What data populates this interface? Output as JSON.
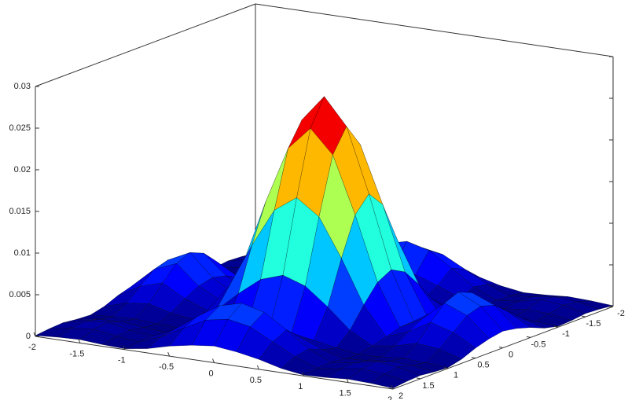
{
  "chart_data": {
    "type": "surface",
    "colormap": "jet",
    "x": [
      -2,
      -1.75,
      -1.5,
      -1.25,
      -1,
      -0.75,
      -0.5,
      -0.25,
      0,
      0.25,
      0.5,
      0.75,
      1,
      1.25,
      1.5,
      1.75,
      2
    ],
    "y": [
      -2,
      -1.75,
      -1.5,
      -1.25,
      -1,
      -0.75,
      -0.5,
      -0.25,
      0,
      0.25,
      0.5,
      0.75,
      1,
      1.25,
      1.5,
      1.75,
      2
    ],
    "z": [
      [
        0.0001,
        0.0003,
        0.0004,
        0.0002,
        0.0001,
        0.0005,
        0.0012,
        0.0017,
        0.002,
        0.0017,
        0.0012,
        0.0005,
        0.0001,
        0.0002,
        0.0004,
        0.0003,
        0.0001
      ],
      [
        0.0003,
        0.0008,
        0.001,
        0.0006,
        0.0003,
        0.0013,
        0.0027,
        0.0041,
        0.0046,
        0.0041,
        0.0027,
        0.0013,
        0.0003,
        0.0006,
        0.001,
        0.0008,
        0.0003
      ],
      [
        0.0004,
        0.001,
        0.0013,
        0.0007,
        0.0004,
        0.0016,
        0.0035,
        0.0052,
        0.0059,
        0.0052,
        0.0035,
        0.0016,
        0.0004,
        0.0007,
        0.0013,
        0.001,
        0.0004
      ],
      [
        0.0002,
        0.0006,
        0.0007,
        0.0004,
        0.0002,
        0.0009,
        0.002,
        0.0029,
        0.0033,
        0.0029,
        0.002,
        0.0009,
        0.0002,
        0.0004,
        0.0007,
        0.0006,
        0.0002
      ],
      [
        0.0001,
        0.0003,
        0.0004,
        0.0002,
        0.0001,
        0.0005,
        0.001,
        0.0015,
        0.0016,
        0.0015,
        0.001,
        0.0005,
        0.0001,
        0.0002,
        0.0004,
        0.0003,
        0.0001
      ],
      [
        0.0005,
        0.0013,
        0.0016,
        0.0009,
        0.0005,
        0.002,
        0.0044,
        0.0065,
        0.0074,
        0.0065,
        0.0044,
        0.002,
        0.0005,
        0.0009,
        0.0016,
        0.0013,
        0.0005
      ],
      [
        0.0012,
        0.0027,
        0.0035,
        0.002,
        0.001,
        0.0044,
        0.0096,
        0.0142,
        0.0161,
        0.0142,
        0.0096,
        0.0044,
        0.001,
        0.002,
        0.0035,
        0.0027,
        0.0012
      ],
      [
        0.0017,
        0.0041,
        0.0052,
        0.0029,
        0.0015,
        0.0065,
        0.0142,
        0.021,
        0.0238,
        0.021,
        0.0142,
        0.0065,
        0.0015,
        0.0029,
        0.0052,
        0.0041,
        0.0017
      ],
      [
        0.002,
        0.0046,
        0.0059,
        0.0033,
        0.0016,
        0.0074,
        0.0161,
        0.0238,
        0.027,
        0.0238,
        0.0161,
        0.0074,
        0.0016,
        0.0033,
        0.0059,
        0.0046,
        0.002
      ],
      [
        0.0017,
        0.0041,
        0.0052,
        0.0029,
        0.0015,
        0.0065,
        0.0142,
        0.021,
        0.0238,
        0.021,
        0.0142,
        0.0065,
        0.0015,
        0.0029,
        0.0052,
        0.0041,
        0.0017
      ],
      [
        0.0012,
        0.0027,
        0.0035,
        0.002,
        0.001,
        0.0044,
        0.0096,
        0.0142,
        0.0161,
        0.0142,
        0.0096,
        0.0044,
        0.001,
        0.002,
        0.0035,
        0.0027,
        0.0012
      ],
      [
        0.0005,
        0.0013,
        0.0016,
        0.0009,
        0.0005,
        0.002,
        0.0044,
        0.0065,
        0.0074,
        0.0065,
        0.0044,
        0.002,
        0.0005,
        0.0009,
        0.0016,
        0.0013,
        0.0005
      ],
      [
        0.0001,
        0.0003,
        0.0004,
        0.0002,
        0.0001,
        0.0005,
        0.001,
        0.0015,
        0.0016,
        0.0015,
        0.001,
        0.0005,
        0.0001,
        0.0002,
        0.0004,
        0.0003,
        0.0001
      ],
      [
        0.0002,
        0.0006,
        0.0007,
        0.0004,
        0.0002,
        0.0009,
        0.002,
        0.0029,
        0.0033,
        0.0029,
        0.002,
        0.0009,
        0.0002,
        0.0004,
        0.0007,
        0.0006,
        0.0002
      ],
      [
        0.0004,
        0.001,
        0.0013,
        0.0007,
        0.0004,
        0.0016,
        0.0035,
        0.0052,
        0.0059,
        0.0052,
        0.0035,
        0.0016,
        0.0004,
        0.0007,
        0.0013,
        0.001,
        0.0004
      ],
      [
        0.0003,
        0.0008,
        0.001,
        0.0006,
        0.0003,
        0.0013,
        0.0027,
        0.0041,
        0.0046,
        0.0041,
        0.0027,
        0.0013,
        0.0003,
        0.0006,
        0.001,
        0.0008,
        0.0003
      ],
      [
        0.0001,
        0.0003,
        0.0004,
        0.0002,
        0.0001,
        0.0005,
        0.0012,
        0.0017,
        0.002,
        0.0017,
        0.0012,
        0.0005,
        0.0001,
        0.0002,
        0.0004,
        0.0003,
        0.0001
      ]
    ],
    "xlim": [
      -2,
      2
    ],
    "ylim": [
      -2,
      2
    ],
    "zlim": [
      0,
      0.03
    ],
    "xticks": [
      -2,
      -1.5,
      -1,
      -0.5,
      0,
      0.5,
      1,
      1.5,
      2
    ],
    "yticks": [
      -2,
      -1.5,
      -1,
      -0.5,
      0,
      0.5,
      1,
      1.5,
      2
    ],
    "zticks": [
      0,
      0.005,
      0.01,
      0.015,
      0.02,
      0.025,
      0.03
    ]
  }
}
